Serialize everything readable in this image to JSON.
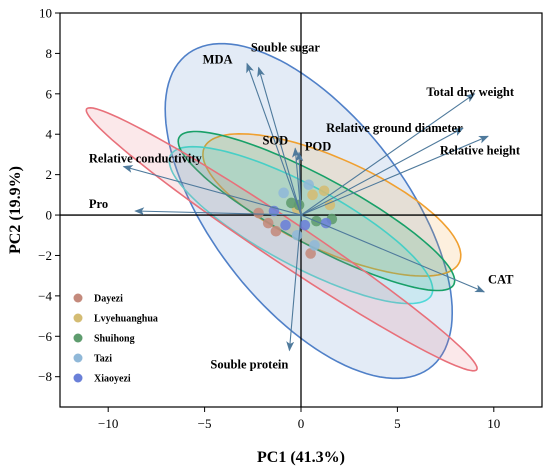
{
  "chart_data": {
    "type": "scatter",
    "title": "",
    "xlabel": "PC1 (41.3%)",
    "ylabel": "PC2 (19.9%)",
    "xlim": [
      -12.5,
      12.5
    ],
    "ylim": [
      -9.5,
      10
    ],
    "xticks": [
      -10,
      -5,
      0,
      5,
      10
    ],
    "xtick_labels": [
      "−10",
      "−5",
      "0",
      "5",
      "10"
    ],
    "yticks": [
      -8,
      -6,
      -4,
      -2,
      0,
      2,
      4,
      6,
      8,
      10
    ],
    "ytick_labels": [
      "−8",
      "−6",
      "−4",
      "−2",
      "0",
      "2",
      "4",
      "6",
      "8",
      "10"
    ],
    "reference_lines": {
      "x": 0,
      "y": 0
    },
    "grid": false,
    "legend_position": "bottom-left",
    "series": [
      {
        "name": "Dayezi",
        "color": "#c48a7c",
        "ellipse_color": "#e8707a",
        "points": [
          [
            -2.2,
            0.1
          ],
          [
            -1.7,
            -0.4
          ],
          [
            -1.3,
            -0.8
          ],
          [
            0.5,
            -1.9
          ]
        ],
        "ellipse": {
          "cx": -1.0,
          "cy": -1.2,
          "rx": 12.0,
          "ry": 1.05,
          "angle_deg": -32.5
        }
      },
      {
        "name": "Lvyehuanghua",
        "color": "#d4bc73",
        "ellipse_color": "#f0a030",
        "points": [
          [
            1.2,
            1.2
          ],
          [
            1.5,
            0.5
          ],
          [
            0.6,
            1.0
          ],
          [
            -0.2,
            0.3
          ]
        ],
        "ellipse": {
          "cx": 1.6,
          "cy": 0.5,
          "rx": 7.2,
          "ry": 2.3,
          "angle_deg": -23
        }
      },
      {
        "name": "Shuihong",
        "color": "#5e9c6e",
        "ellipse_color": "#18a068",
        "points": [
          [
            -0.5,
            0.6
          ],
          [
            0.8,
            -0.3
          ],
          [
            -0.1,
            0.5
          ],
          [
            1.6,
            -0.2
          ]
        ],
        "ellipse": {
          "cx": 0.8,
          "cy": 0.2,
          "rx": 8.0,
          "ry": 1.7,
          "angle_deg": -27
        }
      },
      {
        "name": "Tazi",
        "color": "#90b8d8",
        "ellipse_color": "#50d8d8",
        "points": [
          [
            -0.9,
            1.1
          ],
          [
            0.4,
            1.5
          ],
          [
            -0.2,
            -1.0
          ],
          [
            0.7,
            -1.5
          ]
        ],
        "ellipse": {
          "cx": 0.0,
          "cy": -0.5,
          "rx": 7.6,
          "ry": 2.0,
          "angle_deg": -27
        }
      },
      {
        "name": "Xiaoyezi",
        "color": "#6a80d8",
        "ellipse_color": "#5080c8",
        "points": [
          [
            -0.8,
            -0.5
          ],
          [
            0.2,
            -0.5
          ],
          [
            -1.4,
            0.2
          ],
          [
            1.3,
            -0.4
          ]
        ],
        "ellipse": {
          "cx": 0.4,
          "cy": 0.2,
          "rx": 10.0,
          "ry": 4.9,
          "angle_deg": -50
        }
      }
    ],
    "loadings": [
      {
        "label": "MDA",
        "x": -2.8,
        "y": 7.5,
        "label_x": -5.1,
        "label_y": 7.5
      },
      {
        "label": "Souble sugar",
        "x": -2.2,
        "y": 7.3,
        "label_x": -2.6,
        "label_y": 8.1
      },
      {
        "label": "SOD",
        "x": -0.3,
        "y": 3.3,
        "label_x": -2.0,
        "label_y": 3.5
      },
      {
        "label": "POD",
        "x": -0.1,
        "y": 3.1,
        "label_x": 0.2,
        "label_y": 3.2
      },
      {
        "label": "Total dry weight",
        "x": 9.0,
        "y": 6.0,
        "label_x": 6.5,
        "label_y": 5.9
      },
      {
        "label": "Relative ground diameter",
        "x": 8.4,
        "y": 4.3,
        "label_x": 1.3,
        "label_y": 4.1
      },
      {
        "label": "Relative height",
        "x": 9.7,
        "y": 3.9,
        "label_x": 7.2,
        "label_y": 3.0
      },
      {
        "label": "Relative conductivity",
        "x": -9.2,
        "y": 2.4,
        "label_x": -11.0,
        "label_y": 2.6
      },
      {
        "label": "Pro",
        "x": -8.6,
        "y": 0.2,
        "label_x": -11.0,
        "label_y": 0.35
      },
      {
        "label": "CAT",
        "x": 9.5,
        "y": -3.8,
        "label_x": 9.7,
        "label_y": -3.4
      },
      {
        "label": "Souble protein",
        "x": -0.6,
        "y": -6.7,
        "label_x": -4.7,
        "label_y": -7.6
      }
    ],
    "arrow_color": "#4f7a9c",
    "axis_line_color": "#000000"
  }
}
